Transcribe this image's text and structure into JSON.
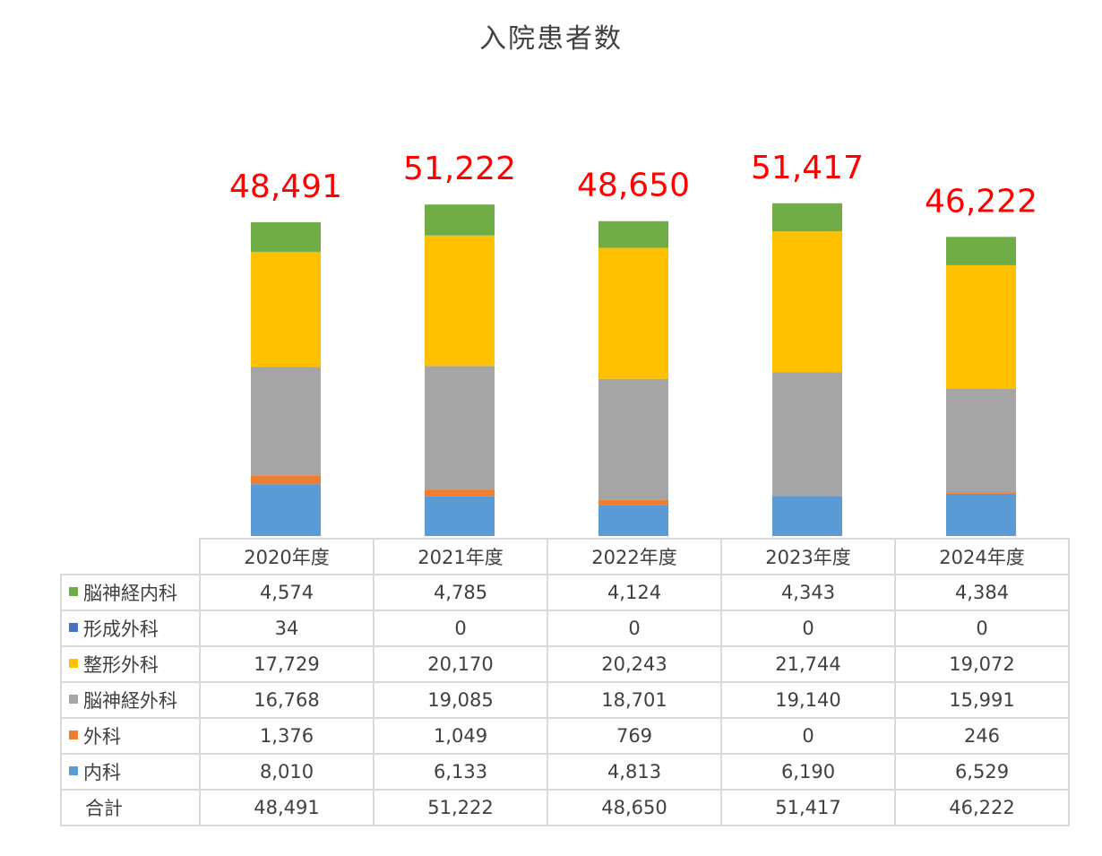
{
  "chart_data": {
    "type": "bar",
    "stacked": true,
    "title": "入院患者数",
    "categories": [
      "2020年度",
      "2021年度",
      "2022年度",
      "2023年度",
      "2024年度"
    ],
    "series": [
      {
        "name": "内科",
        "color": "#5b9bd5",
        "values": [
          8010,
          6133,
          4813,
          6190,
          6529
        ]
      },
      {
        "name": "外科",
        "color": "#ed7d31",
        "values": [
          1376,
          1049,
          769,
          0,
          246
        ]
      },
      {
        "name": "脳神経外科",
        "color": "#a5a5a5",
        "values": [
          16768,
          19085,
          18701,
          19140,
          15991
        ]
      },
      {
        "name": "整形外科",
        "color": "#ffc000",
        "values": [
          17729,
          20170,
          20243,
          21744,
          19072
        ]
      },
      {
        "name": "形成外科",
        "color": "#4472c4",
        "values": [
          34,
          0,
          0,
          0,
          0
        ]
      },
      {
        "name": "脳神経内科",
        "color": "#70ad47",
        "values": [
          4574,
          4785,
          4124,
          4343,
          4384
        ]
      }
    ],
    "totals_label": "合計",
    "totals": [
      48491,
      51222,
      48650,
      51417,
      46222
    ],
    "totals_display": [
      "48,491",
      "51,222",
      "48,650",
      "51,417",
      "46,222"
    ],
    "total_label_color": "#ff0000",
    "legend_placement": "data-table",
    "grid": false,
    "ylim": [
      0,
      52000
    ]
  }
}
